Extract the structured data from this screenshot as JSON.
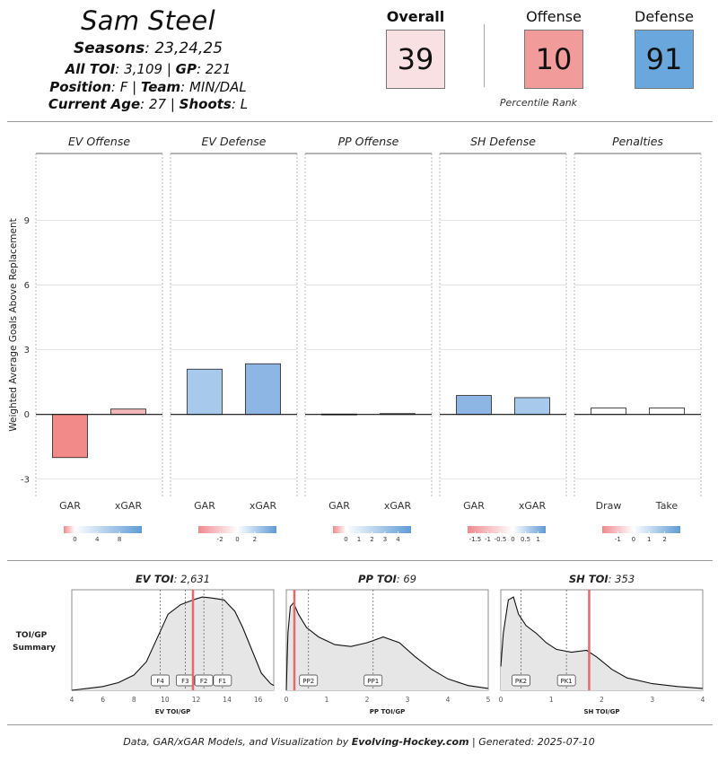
{
  "player": {
    "name": "Sam Steel",
    "seasons_label": "Seasons",
    "seasons": ": 23,24,25",
    "toi_label": "All TOI",
    "toi": ": 3,109 | ",
    "gp_label": "GP",
    "gp": ": 221",
    "position_label": "Position",
    "position": ": F | ",
    "team_label": "Team",
    "team": ": MIN/DAL",
    "age_label": "Current Age",
    "age": ": 27 | ",
    "shoots_label": "Shoots",
    "shoots": ": L"
  },
  "ranks": {
    "overall": {
      "label": "Overall",
      "value": "39",
      "color": "#f9e1e3"
    },
    "offense": {
      "label": "Offense",
      "value": "10",
      "color": "#f19b9b"
    },
    "defense": {
      "label": "Defense",
      "value": "91",
      "color": "#6aa7dc"
    },
    "caption": "Percentile Rank"
  },
  "chart_data": [
    {
      "type": "bar",
      "ylabel": "Weighted Average Goals Above Replacement",
      "ylim": [
        -3.8,
        12.1
      ],
      "yticks": [
        -3,
        0,
        3,
        6,
        9
      ],
      "grid": true,
      "panels": [
        {
          "title": "EV Offense",
          "categories": [
            "GAR",
            "xGAR"
          ],
          "values": [
            -2.0,
            0.25
          ],
          "colors": [
            "#f28a8a",
            "#f3b7b9"
          ],
          "legend": {
            "min": -2.0,
            "max": 12.0,
            "ticks": [
              0,
              4,
              8
            ]
          }
        },
        {
          "title": "EV Defense",
          "categories": [
            "GAR",
            "xGAR"
          ],
          "values": [
            2.1,
            2.35
          ],
          "colors": [
            "#a7c9ec",
            "#8eb6e4"
          ],
          "legend": {
            "min": -4.5,
            "max": 4.5,
            "ticks": [
              -2,
              0,
              2
            ]
          }
        },
        {
          "title": "PP Offense",
          "categories": [
            "GAR",
            "xGAR"
          ],
          "values": [
            0.02,
            0.04
          ],
          "colors": [
            "#f7f7f7",
            "#f7f7f7"
          ],
          "legend": {
            "min": -1.0,
            "max": 5.0,
            "ticks": [
              0,
              1,
              2,
              3,
              4
            ]
          }
        },
        {
          "title": "SH Defense",
          "categories": [
            "GAR",
            "xGAR"
          ],
          "values": [
            0.88,
            0.78
          ],
          "colors": [
            "#8eb6e4",
            "#a7c9ec"
          ],
          "legend": {
            "min": -1.8,
            "max": 1.3,
            "ticks": [
              -1.5,
              -1.0,
              -0.5,
              0.0,
              0.5,
              1.0
            ]
          }
        },
        {
          "title": "Penalties",
          "categories": [
            "Draw",
            "Take"
          ],
          "values": [
            0.3,
            0.3
          ],
          "colors": [
            "#ffffff",
            "#ffffff"
          ],
          "legend": {
            "min": -2.0,
            "max": 3.0,
            "ticks": [
              -1,
              0,
              1,
              2
            ]
          }
        }
      ]
    },
    {
      "type": "area",
      "summary_label": "TOI/GP",
      "summary_label2": "Summary",
      "panels": [
        {
          "title_label": "EV TOI",
          "title_value": ": 2,631",
          "xlabel": "EV TOI/GP",
          "xlim": [
            4,
            17
          ],
          "xticks": [
            4,
            6,
            8,
            10,
            12,
            14,
            16
          ],
          "player_value": 11.8,
          "density": [
            [
              4,
              0.0
            ],
            [
              5,
              0.02
            ],
            [
              6,
              0.04
            ],
            [
              7,
              0.08
            ],
            [
              8,
              0.16
            ],
            [
              8.8,
              0.3
            ],
            [
              9.5,
              0.55
            ],
            [
              10.2,
              0.8
            ],
            [
              11,
              0.9
            ],
            [
              11.5,
              0.93
            ],
            [
              12,
              0.96
            ],
            [
              12.4,
              0.98
            ],
            [
              13,
              0.97
            ],
            [
              13.8,
              0.95
            ],
            [
              14.5,
              0.83
            ],
            [
              15,
              0.66
            ],
            [
              15.6,
              0.42
            ],
            [
              16.2,
              0.18
            ],
            [
              16.8,
              0.07
            ],
            [
              17,
              0.05
            ]
          ],
          "markers": [
            {
              "label": "F4",
              "x": 9.7
            },
            {
              "label": "F3",
              "x": 11.3
            },
            {
              "label": "F2",
              "x": 12.5
            },
            {
              "label": "F1",
              "x": 13.7
            }
          ]
        },
        {
          "title_label": "PP TOI",
          "title_value": ": 69",
          "xlabel": "PP TOI/GP",
          "xlim": [
            0,
            5
          ],
          "xticks": [
            0,
            1,
            2,
            3,
            4,
            5
          ],
          "player_value": 0.2,
          "density": [
            [
              0,
              0.0
            ],
            [
              0.04,
              0.6
            ],
            [
              0.1,
              0.88
            ],
            [
              0.18,
              0.92
            ],
            [
              0.3,
              0.8
            ],
            [
              0.5,
              0.66
            ],
            [
              0.8,
              0.56
            ],
            [
              1.2,
              0.48
            ],
            [
              1.6,
              0.46
            ],
            [
              2.0,
              0.5
            ],
            [
              2.4,
              0.56
            ],
            [
              2.8,
              0.5
            ],
            [
              3.2,
              0.35
            ],
            [
              3.6,
              0.22
            ],
            [
              4.0,
              0.12
            ],
            [
              4.5,
              0.05
            ],
            [
              5,
              0.02
            ]
          ],
          "markers": [
            {
              "label": "PP2",
              "x": 0.55
            },
            {
              "label": "PP1",
              "x": 2.15
            }
          ]
        },
        {
          "title_label": "SH TOI",
          "title_value": ": 353",
          "xlabel": "SH TOI/GP",
          "xlim": [
            0,
            4
          ],
          "xticks": [
            0,
            1,
            2,
            3,
            4
          ],
          "player_value": 1.75,
          "density": [
            [
              0,
              0.25
            ],
            [
              0.05,
              0.6
            ],
            [
              0.15,
              0.95
            ],
            [
              0.25,
              0.98
            ],
            [
              0.35,
              0.8
            ],
            [
              0.5,
              0.68
            ],
            [
              0.7,
              0.6
            ],
            [
              0.9,
              0.5
            ],
            [
              1.1,
              0.43
            ],
            [
              1.4,
              0.4
            ],
            [
              1.7,
              0.42
            ],
            [
              1.9,
              0.35
            ],
            [
              2.2,
              0.22
            ],
            [
              2.5,
              0.13
            ],
            [
              3.0,
              0.07
            ],
            [
              3.5,
              0.04
            ],
            [
              4,
              0.02
            ]
          ],
          "markers": [
            {
              "label": "PK2",
              "x": 0.4
            },
            {
              "label": "PK1",
              "x": 1.3
            }
          ]
        }
      ]
    }
  ],
  "footer": {
    "prefix": "Data, GAR/xGAR Models, and Visualization by ",
    "brand": "Evolving-Hockey.com",
    "suffix": " | Generated: 2025-07-10"
  }
}
